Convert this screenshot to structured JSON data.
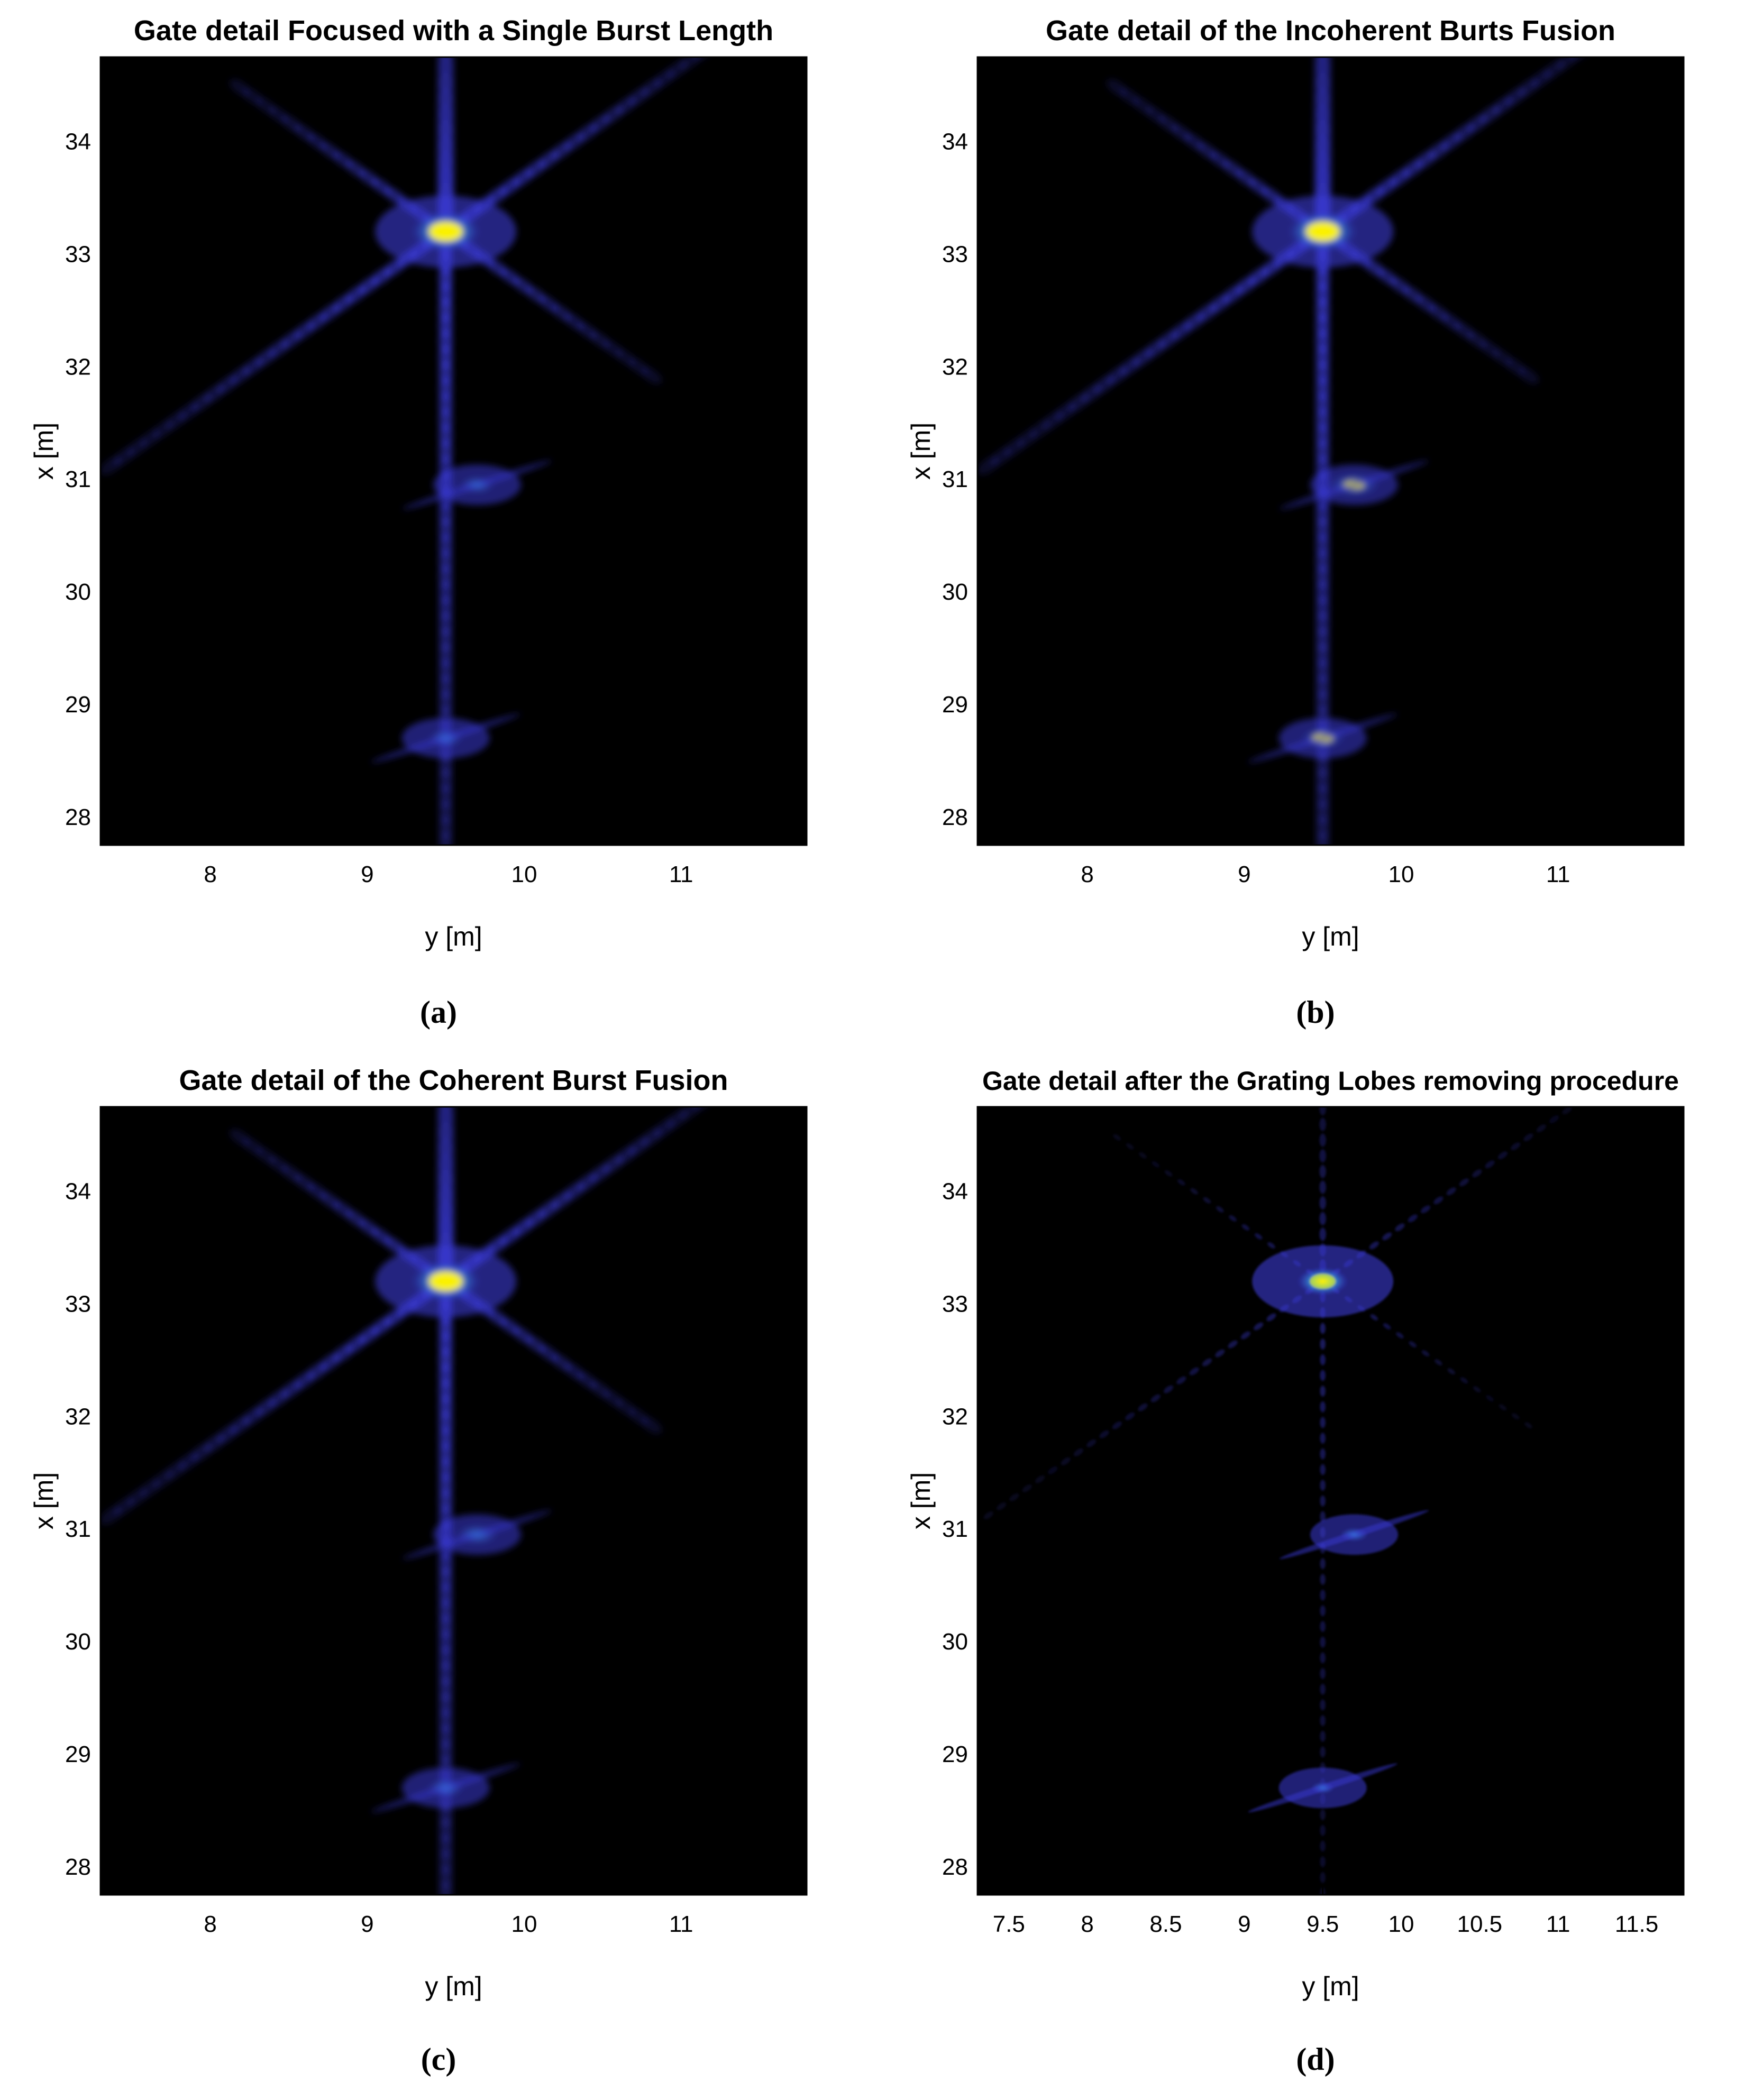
{
  "figures": [
    {
      "caption": "(a)"
    },
    {
      "caption": "(b)"
    },
    {
      "caption": "(c)"
    },
    {
      "caption": "(d)"
    }
  ],
  "colors": {
    "background": "#000000",
    "low": "#3a3ad6",
    "mid": "#2fa8d8",
    "high": "#fff200"
  },
  "chart_data": [
    {
      "type": "heatmap",
      "title": "Gate detail Focused with a Single Burst Length",
      "xlabel": "y [m]",
      "ylabel": "x [m]",
      "xlim": [
        7.3,
        11.8
      ],
      "ylim": [
        27.75,
        34.75
      ],
      "xticks": [
        8,
        9,
        10,
        11
      ],
      "xtick_labels": [
        "8",
        "9",
        "10",
        "11"
      ],
      "yticks": [
        28,
        29,
        30,
        31,
        32,
        33,
        34
      ],
      "ytick_labels": [
        "28",
        "29",
        "30",
        "31",
        "32",
        "33",
        "34"
      ],
      "grid": false,
      "colormap": "parula-like",
      "targets": [
        {
          "y": 9.5,
          "x": 33.2,
          "intensity": 1.0
        },
        {
          "y": 9.7,
          "x": 30.95,
          "intensity": 0.55
        },
        {
          "y": 9.5,
          "x": 28.7,
          "intensity": 0.55
        }
      ]
    },
    {
      "type": "heatmap",
      "title": "Gate detail of the Incoherent Burts Fusion",
      "xlabel": "y [m]",
      "ylabel": "x [m]",
      "xlim": [
        7.3,
        11.8
      ],
      "ylim": [
        27.75,
        34.75
      ],
      "xticks": [
        8,
        9,
        10,
        11
      ],
      "xtick_labels": [
        "8",
        "9",
        "10",
        "11"
      ],
      "yticks": [
        28,
        29,
        30,
        31,
        32,
        33,
        34
      ],
      "ytick_labels": [
        "28",
        "29",
        "30",
        "31",
        "32",
        "33",
        "34"
      ],
      "grid": false,
      "colormap": "parula-like",
      "targets": [
        {
          "y": 9.5,
          "x": 33.2,
          "intensity": 1.0
        },
        {
          "y": 9.7,
          "x": 30.95,
          "intensity": 0.9
        },
        {
          "y": 9.5,
          "x": 28.7,
          "intensity": 0.75
        }
      ]
    },
    {
      "type": "heatmap",
      "title": "Gate detail of the Coherent Burst Fusion",
      "xlabel": "y [m]",
      "ylabel": "x [m]",
      "xlim": [
        7.3,
        11.8
      ],
      "ylim": [
        27.75,
        34.75
      ],
      "xticks": [
        8,
        9,
        10,
        11
      ],
      "xtick_labels": [
        "8",
        "9",
        "10",
        "11"
      ],
      "yticks": [
        28,
        29,
        30,
        31,
        32,
        33,
        34
      ],
      "ytick_labels": [
        "28",
        "29",
        "30",
        "31",
        "32",
        "33",
        "34"
      ],
      "grid": false,
      "colormap": "parula-like",
      "targets": [
        {
          "y": 9.5,
          "x": 33.2,
          "intensity": 1.0
        },
        {
          "y": 9.7,
          "x": 30.95,
          "intensity": 0.7
        },
        {
          "y": 9.5,
          "x": 28.7,
          "intensity": 0.6
        }
      ]
    },
    {
      "type": "heatmap",
      "title": "Gate detail after the Grating Lobes removing procedure",
      "xlabel": "y [m]",
      "ylabel": "x [m]",
      "xlim": [
        7.3,
        11.8
      ],
      "ylim": [
        27.75,
        34.75
      ],
      "xticks": [
        7.5,
        8,
        8.5,
        9,
        9.5,
        10,
        10.5,
        11,
        11.5
      ],
      "xtick_labels": [
        "7.5",
        "8",
        "8.5",
        "9",
        "9.5",
        "10",
        "10.5",
        "11",
        "11.5"
      ],
      "yticks": [
        28,
        29,
        30,
        31,
        32,
        33,
        34
      ],
      "ytick_labels": [
        "28",
        "29",
        "30",
        "31",
        "32",
        "33",
        "34"
      ],
      "grid": false,
      "colormap": "parula-like",
      "targets": [
        {
          "y": 9.5,
          "x": 33.2,
          "intensity": 0.75
        },
        {
          "y": 9.7,
          "x": 30.95,
          "intensity": 0.45
        },
        {
          "y": 9.5,
          "x": 28.7,
          "intensity": 0.35
        }
      ]
    }
  ]
}
